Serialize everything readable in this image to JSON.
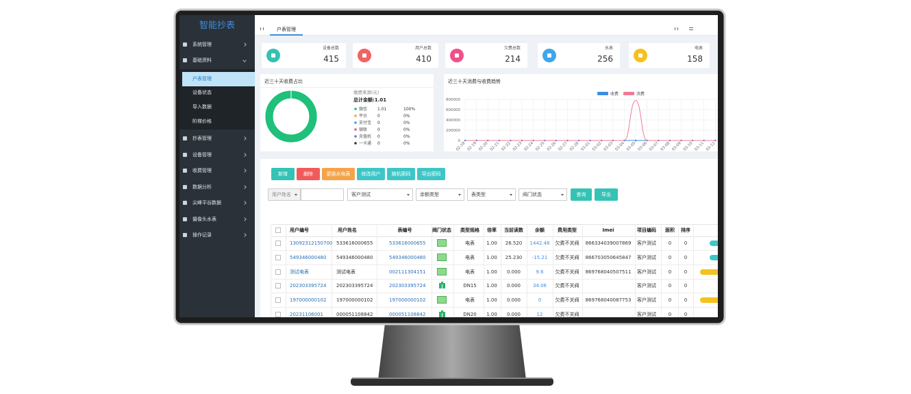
{
  "sidebar": {
    "title": "智能抄表",
    "menu": [
      {
        "label": "系统管理"
      },
      {
        "label": "基础资料",
        "children": [
          "户表管理",
          "设备状态",
          "导入数据",
          "阶梯价格"
        ]
      },
      {
        "label": "抄表管理"
      },
      {
        "label": "设备管理"
      },
      {
        "label": "收费管理"
      },
      {
        "label": "数据分析"
      },
      {
        "label": "尖峰平谷数据"
      },
      {
        "label": "摄像头水表"
      },
      {
        "label": "操作记录"
      }
    ]
  },
  "tabs": [
    "户表管理"
  ],
  "stats": [
    {
      "label": "设备总数",
      "value": 415
    },
    {
      "label": "用户总数",
      "value": 410
    },
    {
      "label": "欠费总数",
      "value": 214
    },
    {
      "label": "水表",
      "value": 256
    },
    {
      "label": "电表",
      "value": 158
    }
  ],
  "chart_data": [
    {
      "type": "pie",
      "title": "近三十天收费占比",
      "legend_title": "缴费来源(元)",
      "total_label": "总计金额:1.01",
      "categories": [
        "微信",
        "平台",
        "支付宝",
        "银联",
        "充值机",
        "一卡通"
      ],
      "values": [
        1.01,
        0,
        0,
        0,
        0,
        0
      ],
      "percents": [
        "100%",
        "0%",
        "0%",
        "0%",
        "0%",
        "0%"
      ],
      "colors": [
        "#1fc07a",
        "#f5a623",
        "#3aa0e0",
        "#f0508a",
        "#7b6fd6",
        "#333333"
      ]
    },
    {
      "type": "line",
      "title": "近三十天消费与收费趋势",
      "categories": [
        "02-18",
        "02-19",
        "02-20",
        "02-21",
        "02-22",
        "02-23",
        "02-24",
        "02-25",
        "02-26",
        "02-27",
        "02-28",
        "03-01",
        "03-02",
        "03-03",
        "03-04",
        "03-05",
        "03-06",
        "03-07",
        "03-08",
        "03-09",
        "03-10",
        "03-11",
        "03-12"
      ],
      "series": [
        {
          "name": "收费",
          "color": "#3a8ee6",
          "values": [
            0,
            0,
            0,
            0,
            0,
            0,
            0,
            0,
            0,
            0,
            0,
            0,
            0,
            0,
            0,
            0,
            0,
            0,
            0,
            0,
            0,
            0,
            0
          ]
        },
        {
          "name": "消费",
          "color": "#f07a98",
          "values": [
            0,
            0,
            0,
            0,
            0,
            0,
            0,
            0,
            0,
            0,
            0,
            0,
            0,
            0,
            0,
            780000,
            0,
            0,
            0,
            0,
            0,
            0,
            0
          ]
        }
      ],
      "ylim": [
        0,
        800000
      ],
      "yticks": [
        0,
        200000,
        400000,
        600000,
        800000
      ],
      "grid": true
    }
  ],
  "toolbar": {
    "buttons": [
      "新增",
      "删除",
      "更换水电表",
      "修改用户",
      "随机密码",
      "导出密码"
    ],
    "filters": [
      "用户姓名",
      "客户测试",
      "余额类型",
      "表类型",
      "阀门状态"
    ],
    "search": "查询",
    "export": "导出"
  },
  "table": {
    "headers": [
      "用户编号",
      "用户姓名",
      "表编号",
      "阀门状态",
      "类型规格",
      "倍率",
      "当前读数",
      "余额",
      "费用类型",
      "Imei",
      "项目编码",
      "面积",
      "排序"
    ],
    "rows": [
      [
        "13092312150700",
        "533616000655",
        "533616000655",
        null,
        "电表",
        "1.00",
        "26.520",
        "1442.48",
        "欠费不关阀",
        "866334039007869",
        "客户测试",
        "0",
        "0"
      ],
      [
        "549346000480",
        "549346000480",
        "549346000480",
        null,
        "电表",
        "1.00",
        "25.230",
        "-15.21",
        "欠费不关阀",
        "866703050645847",
        "客户测试",
        "0",
        "0"
      ],
      [
        "测试电表",
        "测试电表",
        "002111304151",
        null,
        "电表",
        "1.00",
        "0.000",
        "9.6",
        "欠费不关阀",
        "869768040507511",
        "客户测试",
        "0",
        "0"
      ],
      [
        "202303395724",
        "202303395724",
        "202303395724",
        null,
        "DN15",
        "1.00",
        "0.000",
        "34.06",
        "欠费不关阀",
        null,
        "客户测试",
        "0",
        "0"
      ],
      [
        "197000000102",
        "197000000102",
        "197000000102",
        null,
        "电表",
        "1.00",
        "0.000",
        "0",
        "欠费不关阀",
        "869768040087753",
        "客户测试",
        "0",
        "0"
      ],
      [
        "20231106001",
        "000051108842",
        "000051108842",
        null,
        "DN20",
        "1.00",
        "0.000",
        "12",
        "欠费不关阀",
        null,
        "客户测试",
        "0",
        "0"
      ]
    ]
  }
}
